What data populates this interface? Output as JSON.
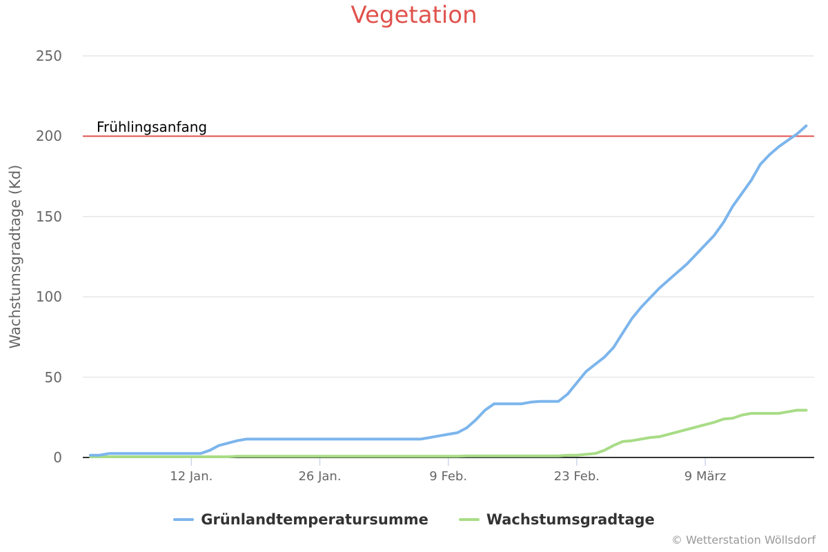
{
  "header": {
    "title": "Vegetation"
  },
  "credits": "© Wetterstation Wöllsdorf",
  "plot_line": {
    "label": "Frühlingsanfang",
    "value": 200,
    "color": "#e0524d"
  },
  "legend": [
    {
      "label": "Grünlandtemperatursumme",
      "color": "#7cb5ec"
    },
    {
      "label": "Wachstumsgradtage",
      "color": "#a8dc86"
    }
  ],
  "chart_data": {
    "type": "line",
    "title": "Vegetation",
    "xlabel": "",
    "ylabel": "Wachstumsgradtage (Kd)",
    "ylim": [
      0,
      250
    ],
    "yticks": [
      0,
      50,
      100,
      150,
      200,
      250
    ],
    "xticks": [
      "12 Jan.",
      "26 Jan.",
      "9 Feb.",
      "23 Feb.",
      "9 März"
    ],
    "grid": true,
    "legend_position": "bottom",
    "x_start": "1 Jan.",
    "x_step": "1 day",
    "x": [
      "1 Jan.",
      "2 Jan.",
      "3 Jan.",
      "4 Jan.",
      "5 Jan.",
      "6 Jan.",
      "7 Jan.",
      "8 Jan.",
      "9 Jan.",
      "10 Jan.",
      "11 Jan.",
      "12 Jan.",
      "13 Jan.",
      "14 Jan.",
      "15 Jan.",
      "16 Jan.",
      "17 Jan.",
      "18 Jan.",
      "19 Jan.",
      "20 Jan.",
      "21 Jan.",
      "22 Jan.",
      "23 Jan.",
      "24 Jan.",
      "25 Jan.",
      "26 Jan.",
      "27 Jan.",
      "28 Jan.",
      "29 Jan.",
      "30 Jan.",
      "31 Jan.",
      "1 Feb.",
      "2 Feb.",
      "3 Feb.",
      "4 Feb.",
      "5 Feb.",
      "6 Feb.",
      "7 Feb.",
      "8 Feb.",
      "9 Feb.",
      "10 Feb.",
      "11 Feb.",
      "12 Feb.",
      "13 Feb.",
      "14 Feb.",
      "15 Feb.",
      "16 Feb.",
      "17 Feb.",
      "18 Feb.",
      "19 Feb.",
      "20 Feb.",
      "21 Feb.",
      "22 Feb.",
      "23 Feb.",
      "24 Feb.",
      "25 Feb.",
      "26 Feb.",
      "27 Feb.",
      "28 Feb.",
      "1 März",
      "2 März",
      "3 März",
      "4 März",
      "5 März",
      "6 März",
      "7 März",
      "8 März",
      "9 März",
      "10 März",
      "11 März",
      "12 März",
      "13 März",
      "14 März",
      "15 März",
      "16 März",
      "17 März",
      "18 März",
      "19 März",
      "20 März"
    ],
    "annotations": [
      {
        "type": "plotLine",
        "y": 200,
        "label": "Frühlingsanfang"
      }
    ],
    "series": [
      {
        "name": "Grünlandtemperatursumme",
        "color": "#7cb5ec",
        "values": [
          1,
          1,
          2,
          2,
          2,
          2,
          2,
          2,
          2,
          2,
          2,
          2,
          2,
          4,
          7,
          8.5,
          10,
          11,
          11,
          11,
          11,
          11,
          11,
          11,
          11,
          11,
          11,
          11,
          11,
          11,
          11,
          11,
          11,
          11,
          11,
          11,
          11,
          12,
          13,
          14,
          15,
          18,
          23,
          29,
          33,
          33,
          33,
          33,
          34,
          34.5,
          34.5,
          34.5,
          39,
          46,
          53,
          57.5,
          62,
          68,
          77,
          86,
          93,
          99,
          105,
          110,
          115,
          120,
          126,
          132,
          138,
          146,
          156,
          164,
          172,
          182,
          188,
          193,
          197,
          201,
          206
        ]
      },
      {
        "name": "Wachstumsgradtage",
        "color": "#a8dc86",
        "values": [
          0,
          0,
          0,
          0,
          0,
          0,
          0,
          0,
          0,
          0,
          0,
          0,
          0,
          0,
          0,
          0,
          0.3,
          0.3,
          0.3,
          0.3,
          0.3,
          0.3,
          0.3,
          0.3,
          0.3,
          0.3,
          0.3,
          0.3,
          0.3,
          0.3,
          0.3,
          0.3,
          0.3,
          0.3,
          0.3,
          0.3,
          0.3,
          0.3,
          0.3,
          0.3,
          0.3,
          0.5,
          0.5,
          0.5,
          0.5,
          0.5,
          0.5,
          0.5,
          0.5,
          0.5,
          0.5,
          0.5,
          1,
          1,
          1.5,
          2,
          4,
          7,
          9.5,
          10,
          11,
          12,
          12.5,
          14,
          15.5,
          17,
          18.5,
          20,
          21.5,
          23.5,
          24,
          26,
          27,
          27,
          27,
          27,
          28,
          29,
          29
        ]
      }
    ]
  }
}
